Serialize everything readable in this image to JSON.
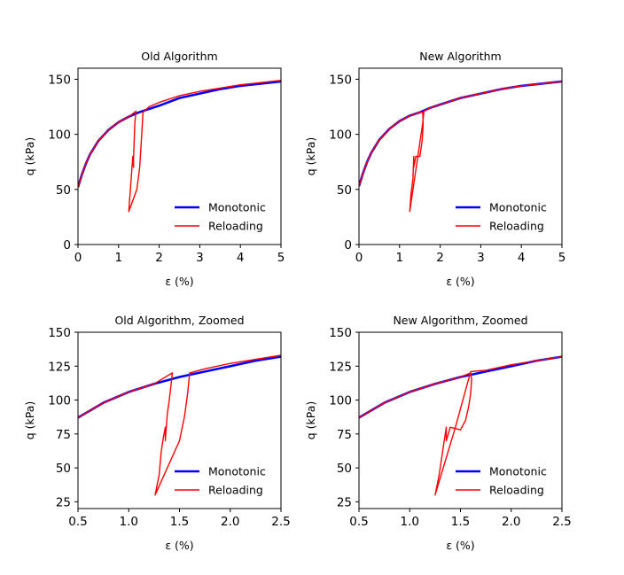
{
  "chart_data": [
    {
      "type": "line",
      "title": "Old Algorithm",
      "xlabel": "ε (%)",
      "ylabel": "q (kPa)",
      "xlim": [
        0,
        5
      ],
      "ylim": [
        0,
        160
      ],
      "xticks": [
        0,
        1,
        2,
        3,
        4,
        5
      ],
      "yticks": [
        0,
        50,
        100,
        150
      ],
      "grid": false,
      "legend_position": "lower-right",
      "series": [
        {
          "name": "Monotonic",
          "color": "#0000ff",
          "x": [
            0,
            0.1,
            0.2,
            0.3,
            0.5,
            0.75,
            1.0,
            1.25,
            1.5,
            1.75,
            2.0,
            2.5,
            3.0,
            3.5,
            4.0,
            4.5,
            5.0
          ],
          "y": [
            52,
            64,
            74,
            82,
            94,
            104,
            111,
            116,
            120,
            123,
            126,
            133,
            137,
            141,
            144,
            146,
            148
          ]
        },
        {
          "name": "Reloading",
          "color": "#ff0000",
          "x": [
            0,
            0.1,
            0.2,
            0.3,
            0.5,
            0.75,
            1.0,
            1.25,
            1.43,
            1.4,
            1.38,
            1.37,
            1.37,
            1.35,
            1.25,
            1.45,
            1.52,
            1.57,
            1.6,
            1.75,
            2.0,
            2.5,
            3.0,
            3.5,
            4.0,
            4.5,
            5.0
          ],
          "y": [
            52,
            64,
            74,
            82,
            94,
            104,
            111,
            116,
            121,
            110,
            90,
            78,
            70,
            80,
            30,
            50,
            70,
            100,
            120,
            125,
            129,
            135,
            139,
            142,
            145,
            147,
            149
          ]
        }
      ]
    },
    {
      "type": "line",
      "title": "New Algorithm",
      "xlabel": "ε (%)",
      "ylabel": "q (kPa)",
      "xlim": [
        0,
        5
      ],
      "ylim": [
        0,
        160
      ],
      "xticks": [
        0,
        1,
        2,
        3,
        4,
        5
      ],
      "yticks": [
        0,
        50,
        100,
        150
      ],
      "grid": false,
      "legend_position": "lower-right",
      "series": [
        {
          "name": "Monotonic",
          "color": "#0000ff",
          "x": [
            0,
            0.1,
            0.2,
            0.3,
            0.5,
            0.75,
            1.0,
            1.25,
            1.5,
            1.75,
            2.0,
            2.5,
            3.0,
            3.5,
            4.0,
            4.5,
            5.0
          ],
          "y": [
            53,
            65,
            75,
            83,
            95,
            105,
            112,
            117,
            120,
            124,
            127,
            133,
            137,
            141,
            144,
            146,
            148
          ]
        },
        {
          "name": "Reloading",
          "color": "#ff0000",
          "x": [
            0,
            0.1,
            0.2,
            0.3,
            0.5,
            0.75,
            1.0,
            1.25,
            1.5,
            1.57,
            1.58,
            1.56,
            1.5,
            1.4,
            1.35,
            1.35,
            1.33,
            1.28,
            1.25,
            1.45,
            1.57,
            1.6,
            1.75,
            2.0,
            2.5,
            3.0,
            3.5,
            4.0,
            4.5,
            5.0
          ],
          "y": [
            53,
            65,
            75,
            83,
            95,
            105,
            112,
            117,
            120,
            120,
            110,
            95,
            80,
            80,
            70,
            80,
            60,
            45,
            30,
            80,
            110,
            121,
            124,
            127,
            133,
            137,
            141,
            144,
            146,
            148
          ]
        }
      ]
    },
    {
      "type": "line",
      "title": "Old Algorithm, Zoomed",
      "xlabel": "ε (%)",
      "ylabel": "q (kPa)",
      "xlim": [
        0.5,
        2.5
      ],
      "ylim": [
        20,
        150
      ],
      "xticks": [
        0.5,
        1.0,
        1.5,
        2.0,
        2.5
      ],
      "yticks": [
        25,
        50,
        75,
        100,
        125,
        150
      ],
      "grid": false,
      "legend_position": "lower-right",
      "series": [
        {
          "name": "Monotonic",
          "color": "#0000ff",
          "x": [
            0.5,
            0.75,
            1.0,
            1.25,
            1.5,
            1.75,
            2.0,
            2.25,
            2.5
          ],
          "y": [
            87,
            98,
            106,
            112,
            117,
            121,
            125,
            129,
            132
          ]
        },
        {
          "name": "Reloading",
          "color": "#ff0000",
          "x": [
            0.5,
            0.75,
            1.0,
            1.25,
            1.43,
            1.42,
            1.4,
            1.38,
            1.37,
            1.36,
            1.36,
            1.34,
            1.32,
            1.3,
            1.26,
            1.5,
            1.55,
            1.58,
            1.6,
            1.75,
            2.0,
            2.25,
            2.5
          ],
          "y": [
            87,
            98,
            106,
            112,
            120,
            113,
            100,
            90,
            80,
            70,
            80,
            72,
            62,
            45,
            30,
            70,
            88,
            105,
            120,
            123,
            127,
            130,
            133
          ]
        }
      ]
    },
    {
      "type": "line",
      "title": "New Algorithm, Zoomed",
      "xlabel": "ε (%)",
      "ylabel": "q (kPa)",
      "xlim": [
        0.5,
        2.5
      ],
      "ylim": [
        20,
        150
      ],
      "xticks": [
        0.5,
        1.0,
        1.5,
        2.0,
        2.5
      ],
      "yticks": [
        25,
        50,
        75,
        100,
        125,
        150
      ],
      "grid": false,
      "legend_position": "lower-right",
      "series": [
        {
          "name": "Monotonic",
          "color": "#0000ff",
          "x": [
            0.5,
            0.75,
            1.0,
            1.25,
            1.5,
            1.75,
            2.0,
            2.25,
            2.5
          ],
          "y": [
            87,
            98,
            106,
            112,
            117,
            121,
            125,
            129,
            132
          ]
        },
        {
          "name": "Reloading",
          "color": "#ff0000",
          "x": [
            0.5,
            0.75,
            1.0,
            1.25,
            1.5,
            1.6,
            1.61,
            1.6,
            1.58,
            1.55,
            1.5,
            1.4,
            1.36,
            1.36,
            1.35,
            1.32,
            1.29,
            1.25,
            1.45,
            1.6,
            1.75,
            2.0,
            2.25,
            2.5
          ],
          "y": [
            87,
            98,
            106,
            112,
            117,
            120,
            115,
            105,
            95,
            85,
            78,
            80,
            70,
            80,
            75,
            60,
            45,
            30,
            80,
            121,
            122,
            126,
            129,
            132
          ]
        }
      ]
    }
  ]
}
